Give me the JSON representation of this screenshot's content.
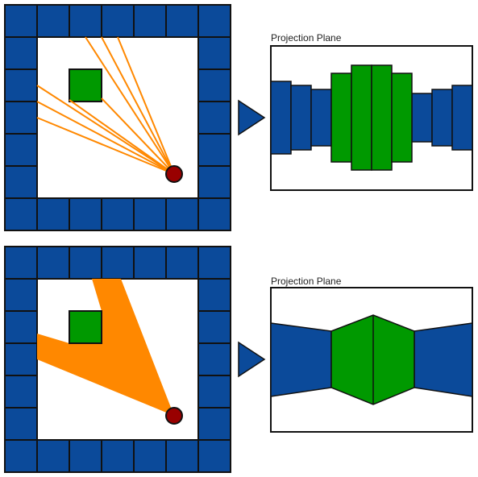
{
  "colors": {
    "wall": "#0b4a9a",
    "block": "#009900",
    "ray": "#ff8800",
    "viewer": "#990000",
    "outline": "#111111",
    "background": "#ffffff"
  },
  "icons": [
    "viewer-dot",
    "arrow-right-icon"
  ],
  "panels": [
    {
      "name": "discrete-rays",
      "plane_label": "Projection Plane"
    },
    {
      "name": "continuous-cone",
      "plane_label": "Projection Plane"
    }
  ]
}
